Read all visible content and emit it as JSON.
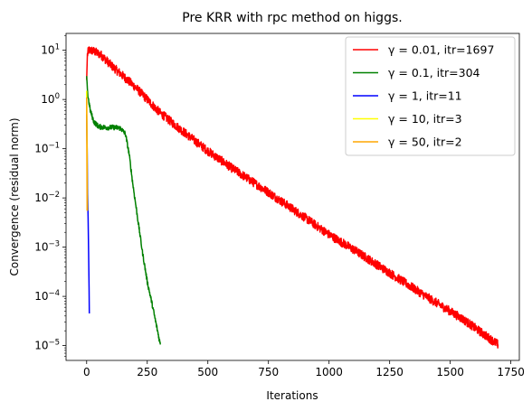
{
  "chart_data": {
    "type": "line",
    "title": "Pre KRR with rpc method on higgs.",
    "xlabel": "Iterations",
    "ylabel": "Convergence (residual norm)",
    "xlim": [
      -85,
      1785
    ],
    "ylim": [
      5e-06,
      22
    ],
    "yscale": "log",
    "xticks": [
      0,
      250,
      500,
      750,
      1000,
      1250,
      1500,
      1750
    ],
    "xtick_labels": [
      "0",
      "250",
      "500",
      "750",
      "1000",
      "1250",
      "1500",
      "1750"
    ],
    "yticks": [
      10.0,
      1.0,
      0.1,
      0.01,
      0.001,
      0.0001,
      1e-05
    ],
    "ytick_labels": [
      {
        "base": "10",
        "exp": "1"
      },
      {
        "base": "10",
        "exp": "0"
      },
      {
        "base": "10",
        "exp": "−1"
      },
      {
        "base": "10",
        "exp": "−2"
      },
      {
        "base": "10",
        "exp": "−3"
      },
      {
        "base": "10",
        "exp": "−4"
      },
      {
        "base": "10",
        "exp": "−5"
      }
    ],
    "grid": false,
    "legend_position": "top-right",
    "series": [
      {
        "name": "γ = 0.01, itr=1697",
        "color": "#ff0000",
        "noise": 0.09,
        "points": [
          [
            0,
            2.5
          ],
          [
            3,
            8.0
          ],
          [
            8,
            10.0
          ],
          [
            25,
            9.8
          ],
          [
            60,
            8.0
          ],
          [
            100,
            5.0
          ],
          [
            150,
            3.0
          ],
          [
            200,
            1.8
          ],
          [
            250,
            1.0
          ],
          [
            300,
            0.55
          ],
          [
            400,
            0.22
          ],
          [
            500,
            0.09
          ],
          [
            600,
            0.04
          ],
          [
            750,
            0.013
          ],
          [
            900,
            0.004
          ],
          [
            1000,
            0.0018
          ],
          [
            1100,
            0.0009
          ],
          [
            1250,
            0.0003
          ],
          [
            1400,
            0.0001
          ],
          [
            1550,
            3.5e-05
          ],
          [
            1697,
            1.05e-05
          ]
        ]
      },
      {
        "name": "γ = 0.1, itr=304",
        "color": "#008000",
        "noise": 0.05,
        "points": [
          [
            0,
            3.0
          ],
          [
            5,
            1.2
          ],
          [
            15,
            0.6
          ],
          [
            30,
            0.35
          ],
          [
            50,
            0.28
          ],
          [
            80,
            0.27
          ],
          [
            120,
            0.27
          ],
          [
            140,
            0.26
          ],
          [
            160,
            0.2
          ],
          [
            175,
            0.08
          ],
          [
            190,
            0.02
          ],
          [
            210,
            0.004
          ],
          [
            230,
            0.0008
          ],
          [
            250,
            0.0002
          ],
          [
            270,
            7e-05
          ],
          [
            285,
            3e-05
          ],
          [
            304,
            1.05e-05
          ]
        ]
      },
      {
        "name": "γ = 1, itr=11",
        "color": "#0000ff",
        "noise": 0,
        "points": [
          [
            0,
            0.5
          ],
          [
            2,
            0.1
          ],
          [
            4,
            0.012
          ],
          [
            6,
            0.004
          ],
          [
            8,
            0.0008
          ],
          [
            10,
            0.00015
          ],
          [
            11,
            4.5e-05
          ]
        ]
      },
      {
        "name": "γ = 10, itr=3",
        "color": "#ffff00",
        "noise": 0,
        "points": [
          [
            0,
            1.5
          ],
          [
            1,
            0.3
          ],
          [
            2,
            0.06
          ],
          [
            3,
            0.0055
          ]
        ]
      },
      {
        "name": "γ = 50, itr=2",
        "color": "#ffa500",
        "noise": 0,
        "points": [
          [
            0,
            1.1
          ],
          [
            1,
            0.07
          ],
          [
            2,
            0.0055
          ]
        ]
      }
    ]
  }
}
